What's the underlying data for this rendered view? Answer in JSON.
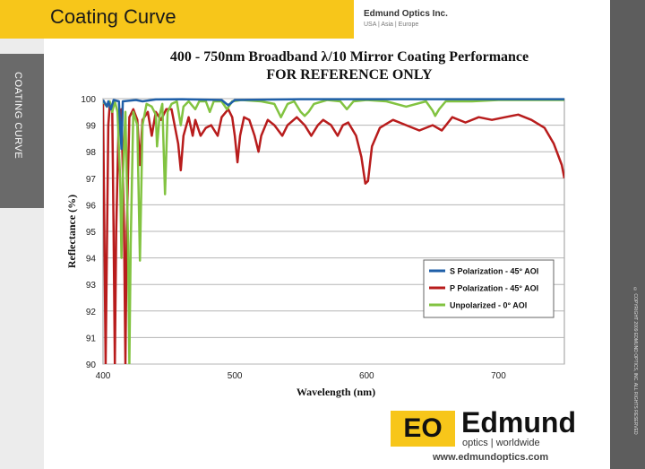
{
  "header": {
    "title": "Coating Curve",
    "company": "Edmund Optics Inc.",
    "regions": "USA | Asia | Europe"
  },
  "sidebar": {
    "label": "COATING CURVE"
  },
  "copyright": "© COPYRIGHT 2009 EDMUND OPTICS, INC. ALL RIGHTS RESERVED",
  "footer": {
    "logo_mark": "EO",
    "logo_word": "Edmund",
    "logo_sub": "optics | worldwide",
    "url": "www.edmundoptics.com"
  },
  "chart_data": {
    "type": "line",
    "title": "400 - 750nm Broadband λ/10 Mirror Coating Performance",
    "subtitle": "FOR REFERENCE ONLY",
    "xlabel": "Wavelength (nm)",
    "ylabel": "Reflectance (%)",
    "xlim": [
      400,
      750
    ],
    "ylim": [
      90,
      100
    ],
    "xticks": [
      400,
      500,
      600,
      700
    ],
    "yticks": [
      90,
      91,
      92,
      93,
      94,
      95,
      96,
      97,
      98,
      99,
      100
    ],
    "grid": true,
    "legend_position": "bottom-right",
    "series": [
      {
        "name": "S Polarization - 45° AOI",
        "color": "#1f5fa8",
        "points": [
          [
            400,
            99.95
          ],
          [
            403,
            99.7
          ],
          [
            404,
            99.9
          ],
          [
            406,
            99.6
          ],
          [
            408,
            99.95
          ],
          [
            412,
            99.9
          ],
          [
            414,
            98.1
          ],
          [
            415,
            99.9
          ],
          [
            425,
            99.95
          ],
          [
            430,
            99.9
          ],
          [
            440,
            99.97
          ],
          [
            460,
            99.98
          ],
          [
            490,
            99.95
          ],
          [
            495,
            99.75
          ],
          [
            500,
            99.95
          ],
          [
            550,
            99.98
          ],
          [
            600,
            99.98
          ],
          [
            650,
            99.98
          ],
          [
            700,
            99.98
          ],
          [
            750,
            99.98
          ]
        ]
      },
      {
        "name": "P Polarization - 45° AOI",
        "color": "#b81c1c",
        "points": [
          [
            400,
            99.8
          ],
          [
            401,
            95
          ],
          [
            402,
            90
          ],
          [
            404,
            99
          ],
          [
            405,
            99.7
          ],
          [
            407,
            99.6
          ],
          [
            408,
            95
          ],
          [
            409,
            90
          ],
          [
            410,
            95
          ],
          [
            412,
            99.5
          ],
          [
            414,
            99.6
          ],
          [
            416,
            95
          ],
          [
            417,
            90
          ],
          [
            418,
            95
          ],
          [
            420,
            99.3
          ],
          [
            423,
            99.6
          ],
          [
            426,
            99.2
          ],
          [
            428,
            97.5
          ],
          [
            430,
            99.2
          ],
          [
            434,
            99.5
          ],
          [
            437,
            98.6
          ],
          [
            440,
            99.5
          ],
          [
            444,
            99.2
          ],
          [
            448,
            99.6
          ],
          [
            452,
            99.6
          ],
          [
            457,
            98.3
          ],
          [
            459,
            97.3
          ],
          [
            461,
            98.6
          ],
          [
            465,
            99.3
          ],
          [
            468,
            98.6
          ],
          [
            470,
            99.2
          ],
          [
            474,
            98.6
          ],
          [
            478,
            98.9
          ],
          [
            482,
            99.0
          ],
          [
            487,
            98.6
          ],
          [
            490,
            99.3
          ],
          [
            495,
            99.6
          ],
          [
            498,
            99.3
          ],
          [
            500,
            98.6
          ],
          [
            502,
            97.6
          ],
          [
            504,
            98.6
          ],
          [
            507,
            99.3
          ],
          [
            511,
            99.2
          ],
          [
            515,
            98.6
          ],
          [
            518,
            98.0
          ],
          [
            520,
            98.6
          ],
          [
            525,
            99.2
          ],
          [
            530,
            99.0
          ],
          [
            536,
            98.6
          ],
          [
            540,
            99.0
          ],
          [
            547,
            99.3
          ],
          [
            553,
            99.0
          ],
          [
            558,
            98.6
          ],
          [
            563,
            99.0
          ],
          [
            567,
            99.2
          ],
          [
            573,
            99.0
          ],
          [
            578,
            98.6
          ],
          [
            582,
            99.0
          ],
          [
            586,
            99.1
          ],
          [
            592,
            98.6
          ],
          [
            596,
            97.8
          ],
          [
            599,
            96.8
          ],
          [
            601,
            96.9
          ],
          [
            604,
            98.2
          ],
          [
            610,
            98.9
          ],
          [
            620,
            99.2
          ],
          [
            630,
            99.0
          ],
          [
            640,
            98.8
          ],
          [
            650,
            99.0
          ],
          [
            657,
            98.8
          ],
          [
            665,
            99.3
          ],
          [
            675,
            99.1
          ],
          [
            685,
            99.3
          ],
          [
            695,
            99.2
          ],
          [
            705,
            99.3
          ],
          [
            715,
            99.4
          ],
          [
            725,
            99.2
          ],
          [
            735,
            98.9
          ],
          [
            742,
            98.3
          ],
          [
            748,
            97.5
          ],
          [
            750,
            97.0
          ]
        ]
      },
      {
        "name": "Unpolarized - 0° AOI",
        "color": "#82c341",
        "points": [
          [
            400,
            99.9
          ],
          [
            403,
            99.7
          ],
          [
            405,
            99.9
          ],
          [
            407,
            99.5
          ],
          [
            409,
            99.9
          ],
          [
            411,
            99.5
          ],
          [
            413,
            97
          ],
          [
            414,
            94
          ],
          [
            415,
            97
          ],
          [
            417,
            99.5
          ],
          [
            419,
            94.5
          ],
          [
            420,
            90
          ],
          [
            421,
            94.5
          ],
          [
            423,
            99.5
          ],
          [
            426,
            99
          ],
          [
            428,
            93.9
          ],
          [
            430,
            99
          ],
          [
            433,
            99.8
          ],
          [
            437,
            99.7
          ],
          [
            440,
            99.4
          ],
          [
            441,
            98.2
          ],
          [
            443,
            99.4
          ],
          [
            445,
            99.8
          ],
          [
            447,
            96.4
          ],
          [
            449,
            99.5
          ],
          [
            452,
            99.8
          ],
          [
            456,
            99.9
          ],
          [
            459,
            99.0
          ],
          [
            461,
            99.7
          ],
          [
            465,
            99.9
          ],
          [
            470,
            99.6
          ],
          [
            473,
            99.9
          ],
          [
            478,
            99.9
          ],
          [
            481,
            99.5
          ],
          [
            484,
            99.9
          ],
          [
            490,
            99.9
          ],
          [
            494,
            99.6
          ],
          [
            498,
            99.9
          ],
          [
            505,
            99.95
          ],
          [
            520,
            99.9
          ],
          [
            530,
            99.8
          ],
          [
            535,
            99.3
          ],
          [
            540,
            99.8
          ],
          [
            545,
            99.9
          ],
          [
            550,
            99.5
          ],
          [
            553,
            99.35
          ],
          [
            556,
            99.5
          ],
          [
            560,
            99.8
          ],
          [
            570,
            99.95
          ],
          [
            580,
            99.9
          ],
          [
            585,
            99.6
          ],
          [
            590,
            99.9
          ],
          [
            600,
            99.95
          ],
          [
            615,
            99.9
          ],
          [
            630,
            99.7
          ],
          [
            645,
            99.9
          ],
          [
            650,
            99.55
          ],
          [
            652,
            99.35
          ],
          [
            655,
            99.6
          ],
          [
            660,
            99.9
          ],
          [
            680,
            99.9
          ],
          [
            700,
            99.95
          ],
          [
            750,
            99.95
          ]
        ]
      }
    ]
  }
}
